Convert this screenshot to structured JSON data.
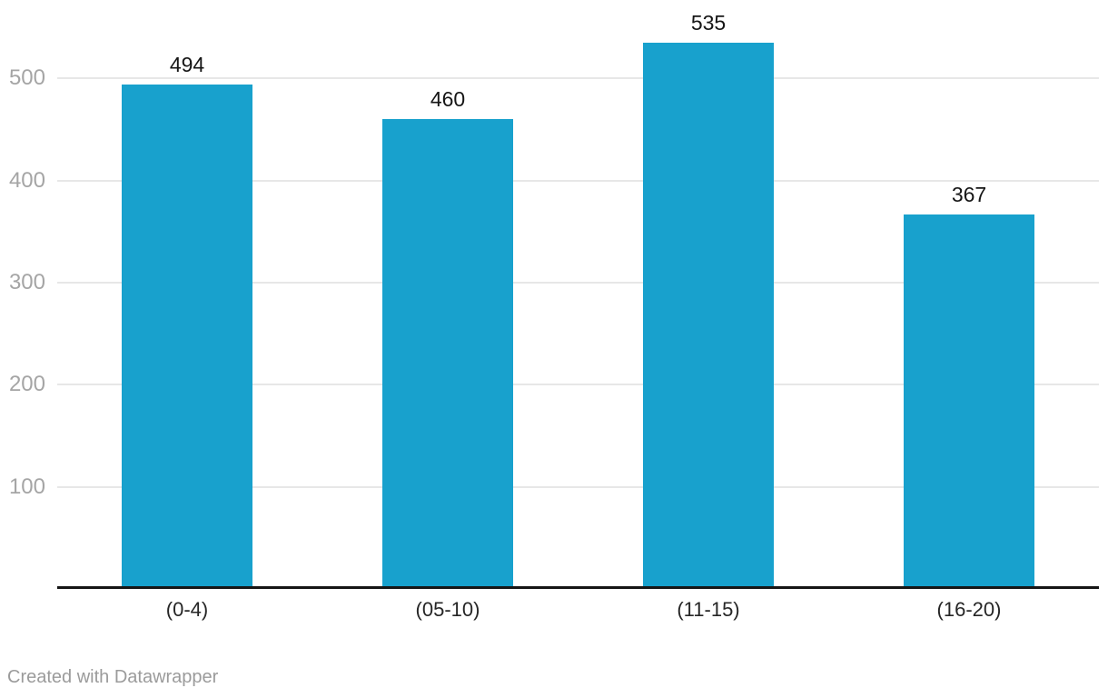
{
  "chart_data": {
    "type": "bar",
    "categories": [
      "(0-4)",
      "(05-10)",
      "(11-15)",
      "(16-20)"
    ],
    "values": [
      494,
      460,
      535,
      367
    ],
    "title": "",
    "xlabel": "",
    "ylabel": "",
    "ylim": [
      0,
      577
    ],
    "yticks": [
      100,
      200,
      300,
      400,
      500
    ],
    "grid": true,
    "value_labels_shown": true,
    "legend": "none",
    "bar_color": "#18a1cd"
  },
  "colors": {
    "bar": "#18a1cd",
    "gridline": "#e7e7e7",
    "axis_line": "#161616",
    "y_tick_label": "#a5a5a5",
    "value_label": "#161616",
    "x_tick_label": "#262626",
    "credit": "#9b9b9b",
    "background": "#ffffff"
  },
  "footer": {
    "credit": "Created with Datawrapper"
  }
}
